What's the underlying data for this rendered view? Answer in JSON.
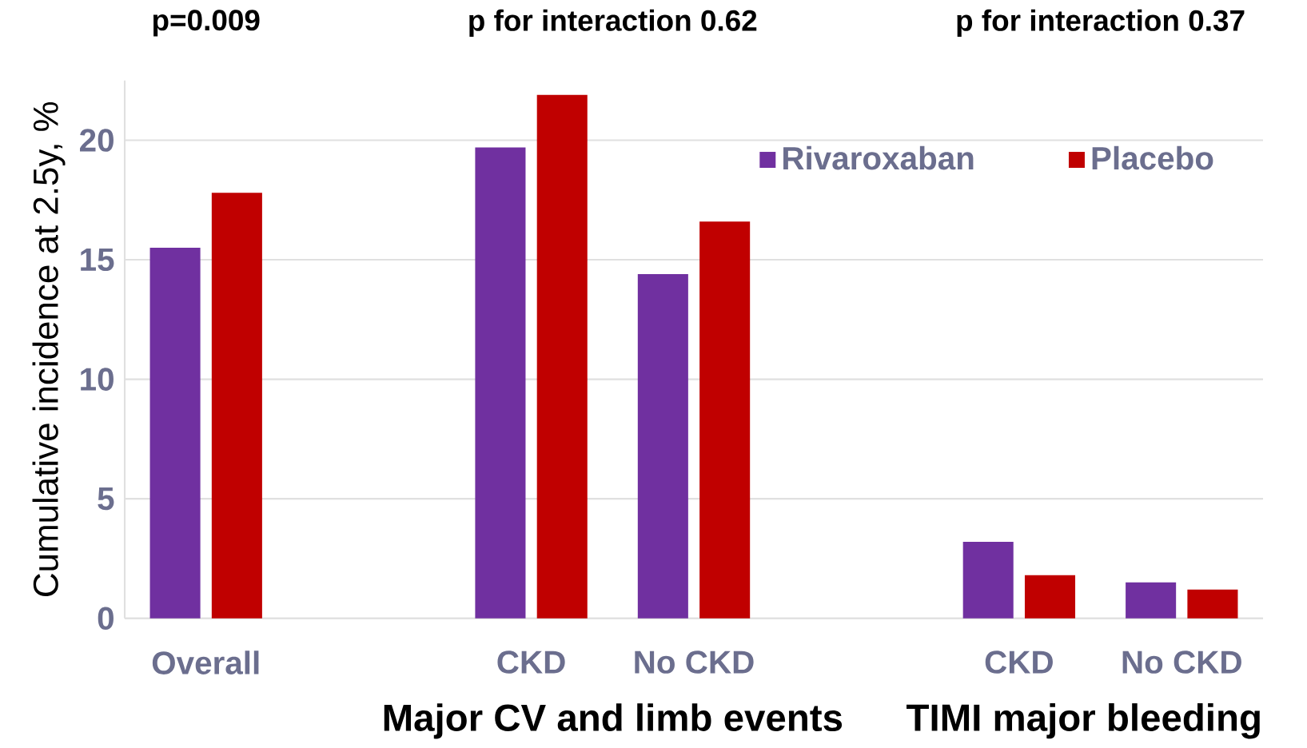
{
  "chart_data": {
    "type": "bar",
    "ylabel": "Cumulative incidence at 2.5y, %",
    "categories": [
      "Overall",
      null,
      "CKD",
      "No CKD",
      null,
      "CKD",
      "No CKD"
    ],
    "series": [
      {
        "name": "Rivaroxaban",
        "color": "#7030a0",
        "values": [
          15.5,
          null,
          19.7,
          14.4,
          null,
          3.2,
          1.5
        ]
      },
      {
        "name": "Placebo",
        "color": "#c00000",
        "values": [
          17.8,
          null,
          21.9,
          16.6,
          null,
          1.8,
          1.2
        ]
      }
    ],
    "ylim": [
      0,
      22.5
    ],
    "yticks": [
      0,
      5,
      10,
      15,
      20
    ],
    "grid": "y",
    "legend": "top right",
    "annotations": [
      "p=0.009",
      "p for interaction 0.62",
      "p for interaction 0.37",
      "Major CV and limb events",
      "TIMI major bleeding"
    ]
  }
}
